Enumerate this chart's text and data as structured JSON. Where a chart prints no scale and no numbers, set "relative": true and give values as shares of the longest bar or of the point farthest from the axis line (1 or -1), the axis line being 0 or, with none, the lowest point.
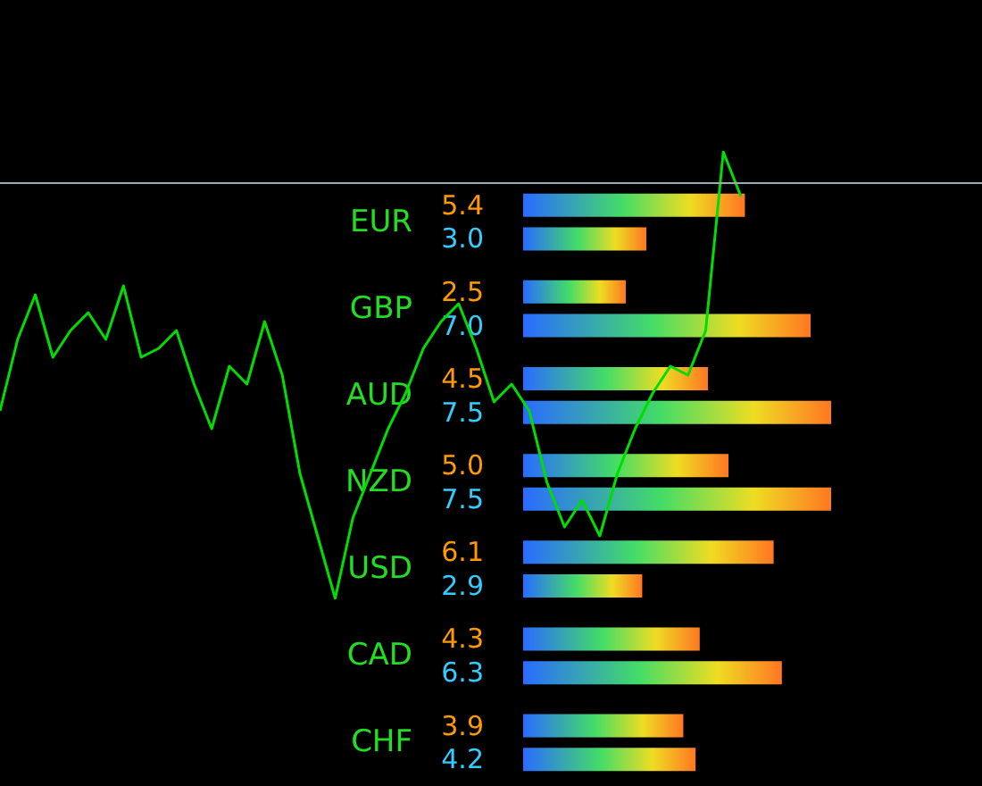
{
  "chart_data": [
    {
      "type": "line",
      "relative": true,
      "categories": [
        null,
        null,
        null,
        null,
        null,
        null,
        null,
        null,
        null,
        null,
        null,
        null,
        null,
        null,
        null,
        null,
        null,
        null,
        null,
        null,
        null,
        null,
        null,
        null,
        null,
        null,
        null,
        null,
        null,
        null,
        null,
        null,
        null,
        null,
        null,
        null,
        null,
        null,
        null,
        null,
        null,
        null,
        null
      ],
      "series": [
        {
          "color": "#00dd00",
          "values": [
            0.42,
            0.58,
            0.68,
            0.54,
            0.6,
            0.64,
            0.58,
            0.7,
            0.54,
            0.56,
            0.6,
            0.48,
            0.38,
            0.52,
            0.48,
            0.62,
            0.5,
            0.28,
            0.14,
            0,
            0.18,
            0.28,
            0.38,
            0.46,
            0.56,
            0.62,
            0.66,
            0.56,
            0.44,
            0.48,
            0.42,
            0.26,
            0.16,
            0.22,
            0.14,
            0.28,
            0.38,
            0.46,
            0.52,
            0.5,
            0.6,
            1,
            0.9
          ]
        }
      ],
      "ref_lines": [
        {
          "axis": "y",
          "value": 0.93,
          "color": "#a0a8b0"
        }
      ],
      "tick_labels": false
    },
    {
      "type": "bar",
      "orientation": "horizontal",
      "categories": [
        "EUR",
        "GBP",
        "AUD",
        "NZD",
        "USD",
        "CAD",
        "CHF"
      ],
      "series": [
        {
          "values": [
            5.4,
            2.5,
            4.5,
            5.0,
            6.1,
            4.3,
            3.9
          ],
          "value_labels": [
            "5.4",
            "2.5",
            "4.5",
            "5.0",
            "6.1",
            "4.3",
            "3.9"
          ]
        },
        {
          "values": [
            3.0,
            7.0,
            7.5,
            7.5,
            2.9,
            6.3,
            4.2
          ],
          "value_labels": [
            "3.0",
            "7.0",
            "7.5",
            "7.5",
            "2.9",
            "6.3",
            "4.2"
          ]
        }
      ],
      "tick_labels": "y"
    }
  ]
}
